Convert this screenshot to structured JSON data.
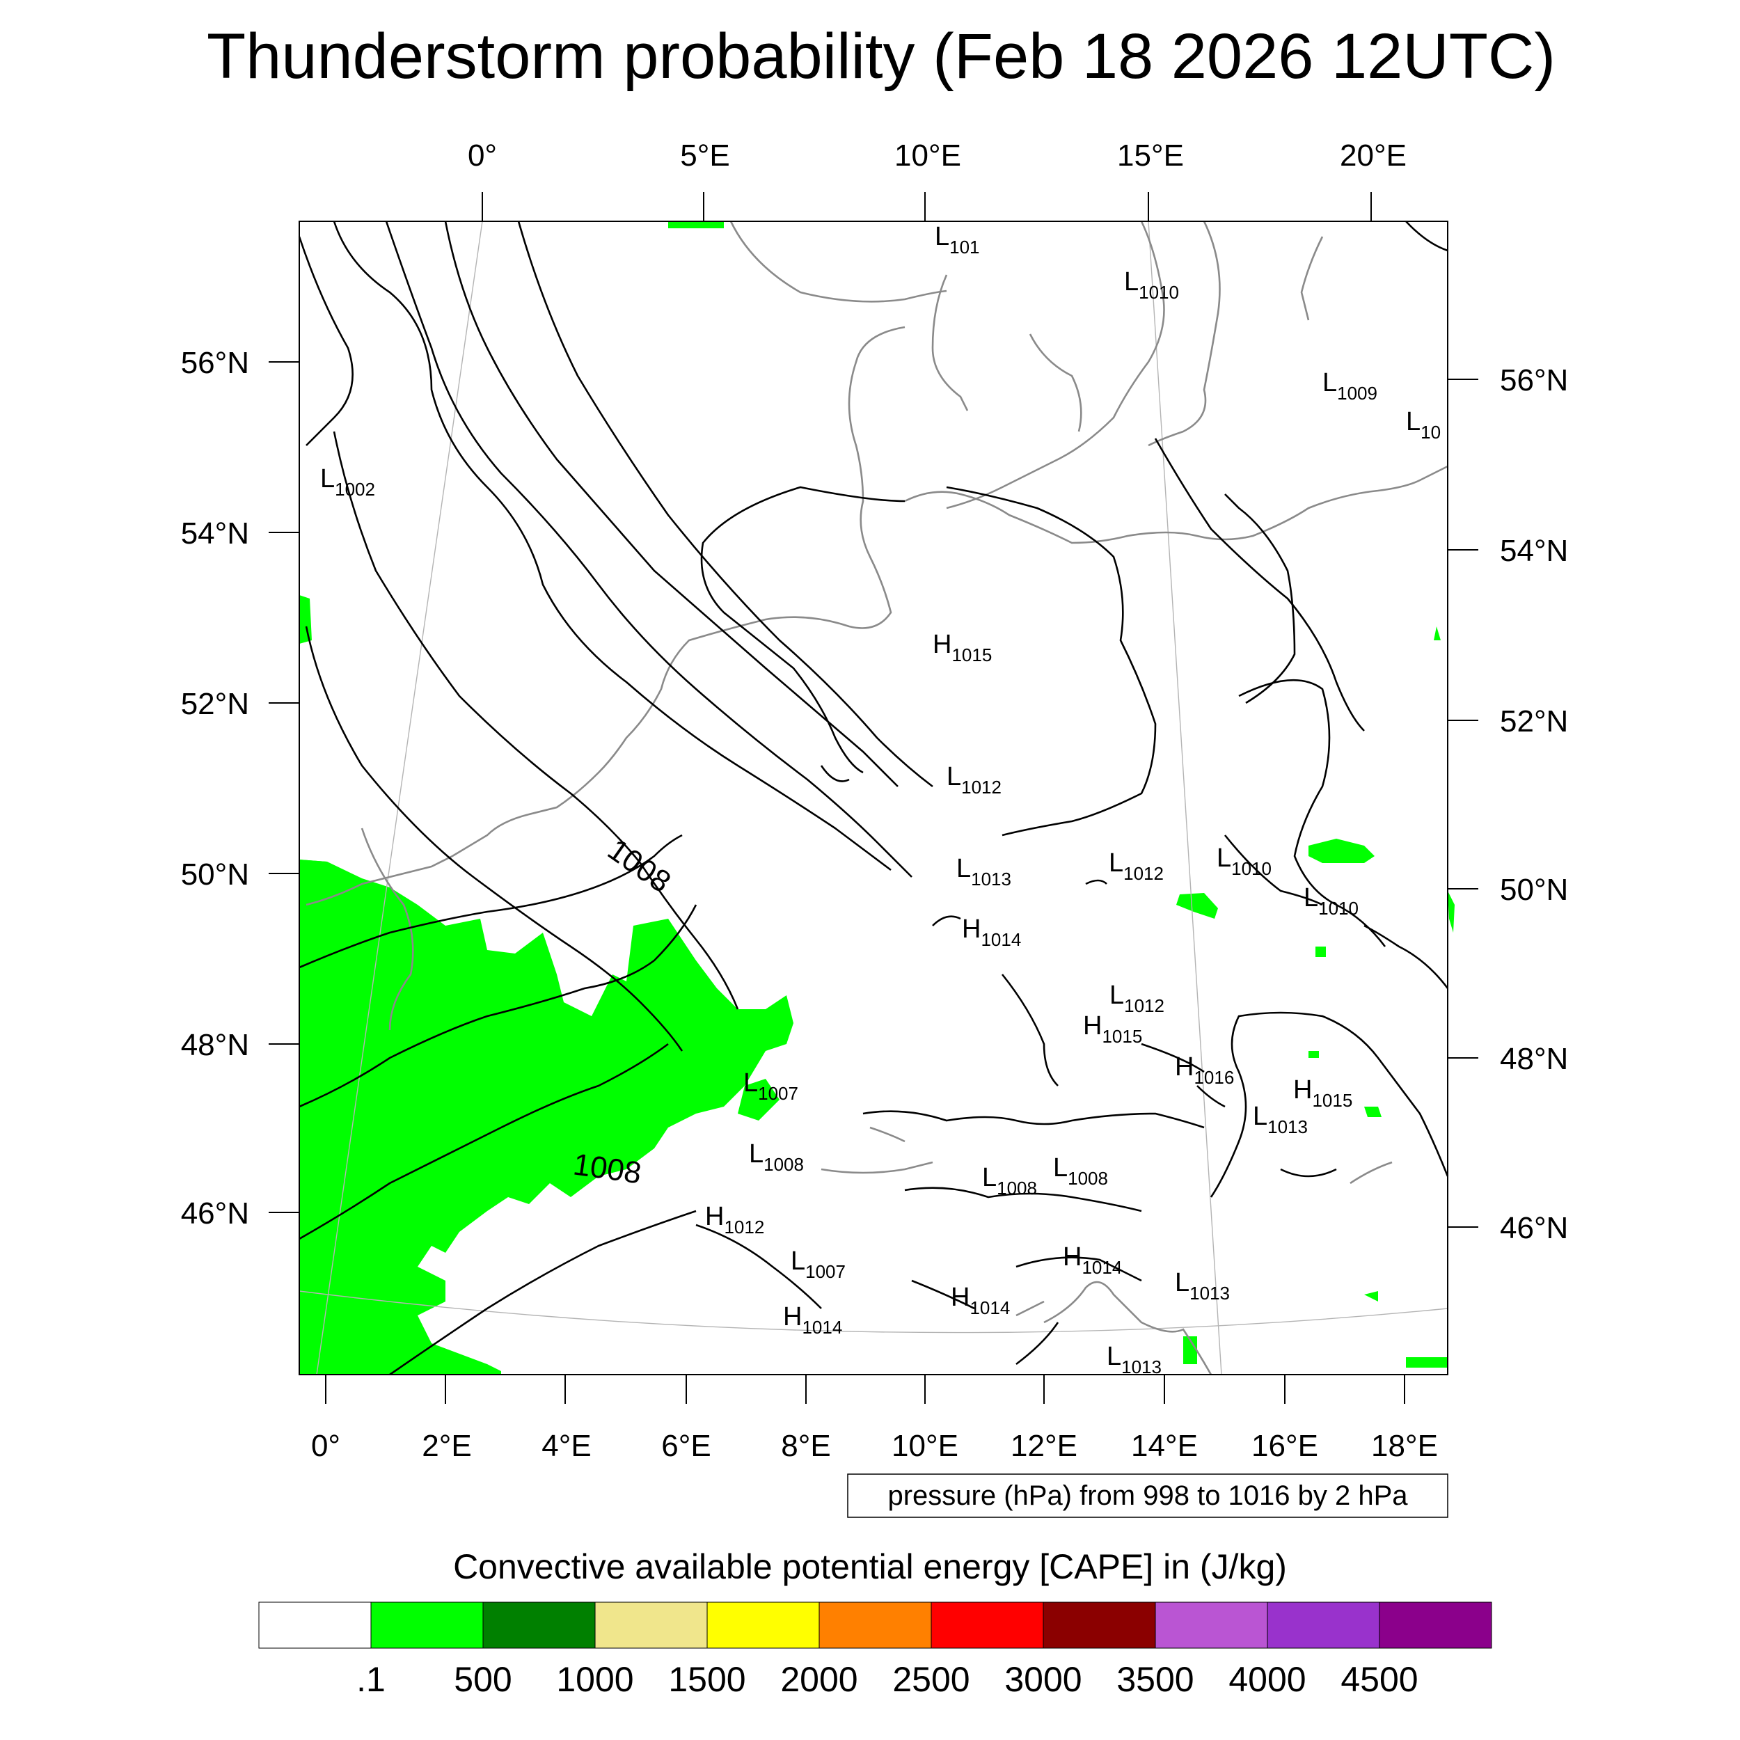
{
  "title": "Thunderstorm probability (Feb 18 2026 12UTC)",
  "axes": {
    "top_lon_labels": [
      "0°",
      "5°E",
      "10°E",
      "15°E",
      "20°E"
    ],
    "bottom_lon_labels": [
      "0°",
      "2°E",
      "4°E",
      "6°E",
      "8°E",
      "10°E",
      "12°E",
      "14°E",
      "16°E",
      "18°E"
    ],
    "left_lat_labels": [
      "56°N",
      "54°N",
      "52°N",
      "50°N",
      "48°N",
      "46°N"
    ],
    "right_lat_labels": [
      "56°N",
      "54°N",
      "52°N",
      "50°N",
      "48°N",
      "46°N"
    ]
  },
  "isobar_labels": [
    "1008",
    "1008"
  ],
  "pressure_centers": [
    {
      "type": "L",
      "value": "101"
    },
    {
      "type": "L",
      "value": "1010"
    },
    {
      "type": "L",
      "value": "1009"
    },
    {
      "type": "L",
      "value": "10"
    },
    {
      "type": "L",
      "value": "1002"
    },
    {
      "type": "H",
      "value": "1015"
    },
    {
      "type": "L",
      "value": "1012"
    },
    {
      "type": "L",
      "value": "1013"
    },
    {
      "type": "L",
      "value": "1012"
    },
    {
      "type": "L",
      "value": "1010"
    },
    {
      "type": "L",
      "value": "1010"
    },
    {
      "type": "H",
      "value": "1014"
    },
    {
      "type": "L",
      "value": "1012"
    },
    {
      "type": "H",
      "value": "1015"
    },
    {
      "type": "H",
      "value": "1016"
    },
    {
      "type": "H",
      "value": "1015"
    },
    {
      "type": "L",
      "value": "1013"
    },
    {
      "type": "L",
      "value": "1007"
    },
    {
      "type": "L",
      "value": "1008"
    },
    {
      "type": "L",
      "value": "1008"
    },
    {
      "type": "L",
      "value": "1008"
    },
    {
      "type": "H",
      "value": "1012"
    },
    {
      "type": "L",
      "value": "1007"
    },
    {
      "type": "H",
      "value": "1014"
    },
    {
      "type": "H",
      "value": "1014"
    },
    {
      "type": "L",
      "value": "1013"
    },
    {
      "type": "H",
      "value": "1014"
    },
    {
      "type": "L",
      "value": "1013"
    }
  ],
  "contour_info": "pressure (hPa) from 998 to 1016 by 2 hPa",
  "colorbar": {
    "title": "Convective available potential energy [CAPE] in (J/kg)",
    "labels": [
      ".1",
      "500",
      "1000",
      "1500",
      "2000",
      "2500",
      "3000",
      "3500",
      "4000",
      "4500"
    ],
    "colors": [
      "#ffffff",
      "#00ff00",
      "#008000",
      "#f0e68c",
      "#ffff00",
      "#ff8000",
      "#ff0000",
      "#8b0000",
      "#ba55d3",
      "#9932cc",
      "#8b008b"
    ]
  }
}
